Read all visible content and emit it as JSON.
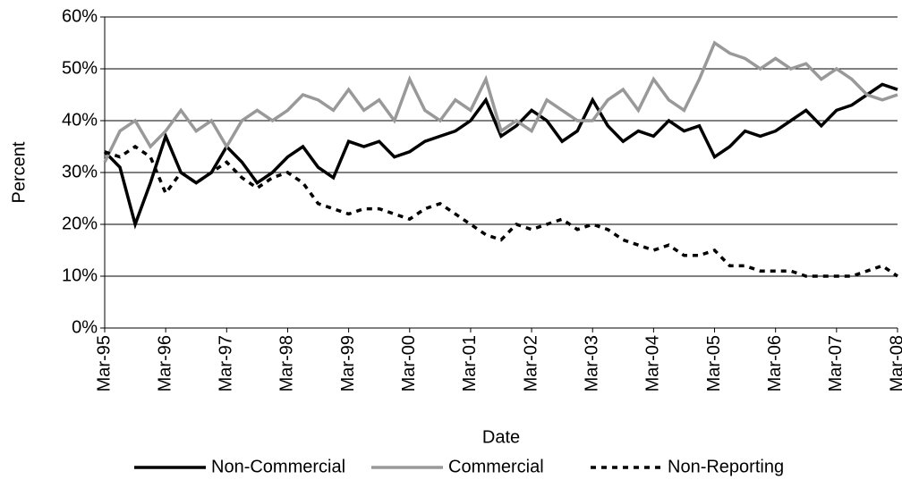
{
  "chart_data": {
    "type": "line",
    "x_label": "Date",
    "y_label": "Percent",
    "categories": [
      "Mar-95",
      null,
      null,
      null,
      "Mar-96",
      null,
      null,
      null,
      "Mar-97",
      null,
      null,
      null,
      "Mar-98",
      null,
      null,
      null,
      "Mar-99",
      null,
      null,
      null,
      "Mar-00",
      null,
      null,
      null,
      "Mar-01",
      null,
      null,
      null,
      "Mar-02",
      null,
      null,
      null,
      "Mar-03",
      null,
      null,
      null,
      "Mar-04",
      null,
      null,
      null,
      "Mar-05",
      null,
      null,
      null,
      "Mar-06",
      null,
      null,
      null,
      "Mar-07",
      null,
      null,
      null,
      "Mar-08"
    ],
    "series": [
      {
        "name": "Non-Commercial",
        "color": "#000000",
        "values": [
          34,
          31,
          20,
          28,
          37,
          30,
          28,
          30,
          35,
          32,
          28,
          30,
          33,
          35,
          31,
          29,
          36,
          35,
          36,
          33,
          34,
          36,
          37,
          38,
          40,
          44,
          37,
          39,
          42,
          40,
          36,
          38,
          44,
          39,
          36,
          38,
          37,
          40,
          38,
          39,
          33,
          35,
          38,
          37,
          38,
          40,
          42,
          39,
          42,
          43,
          45,
          47,
          46
        ]
      },
      {
        "name": "Commercial",
        "color": "#999999",
        "values": [
          32,
          38,
          40,
          35,
          38,
          42,
          38,
          40,
          35,
          40,
          42,
          40,
          42,
          45,
          44,
          42,
          46,
          42,
          44,
          40,
          48,
          42,
          40,
          44,
          42,
          48,
          38,
          40,
          38,
          44,
          42,
          40,
          40,
          44,
          46,
          42,
          48,
          44,
          42,
          48,
          55,
          53,
          52,
          50,
          52,
          50,
          51,
          48,
          50,
          48,
          45,
          44,
          45
        ]
      },
      {
        "name": "Non-Reporting",
        "color": "#000000",
        "dashed": true,
        "values": [
          34,
          33,
          35,
          33,
          26,
          30,
          28,
          30,
          32,
          29,
          27,
          29,
          30,
          28,
          24,
          23,
          22,
          23,
          23,
          22,
          21,
          23,
          24,
          22,
          20,
          18,
          17,
          20,
          19,
          20,
          21,
          19,
          20,
          19,
          17,
          16,
          15,
          16,
          14,
          14,
          15,
          12,
          12,
          11,
          11,
          11,
          10,
          10,
          10,
          10,
          11,
          12,
          10
        ]
      }
    ],
    "ylim": [
      0,
      60
    ],
    "yticks": [
      {
        "value": 0,
        "label": "0%"
      },
      {
        "value": 10,
        "label": "10%"
      },
      {
        "value": 20,
        "label": "20%"
      },
      {
        "value": 30,
        "label": "30%"
      },
      {
        "value": 40,
        "label": "40%"
      },
      {
        "value": 50,
        "label": "50%"
      },
      {
        "value": 60,
        "label": "60%"
      }
    ],
    "grid": true,
    "legend": "bottom"
  }
}
